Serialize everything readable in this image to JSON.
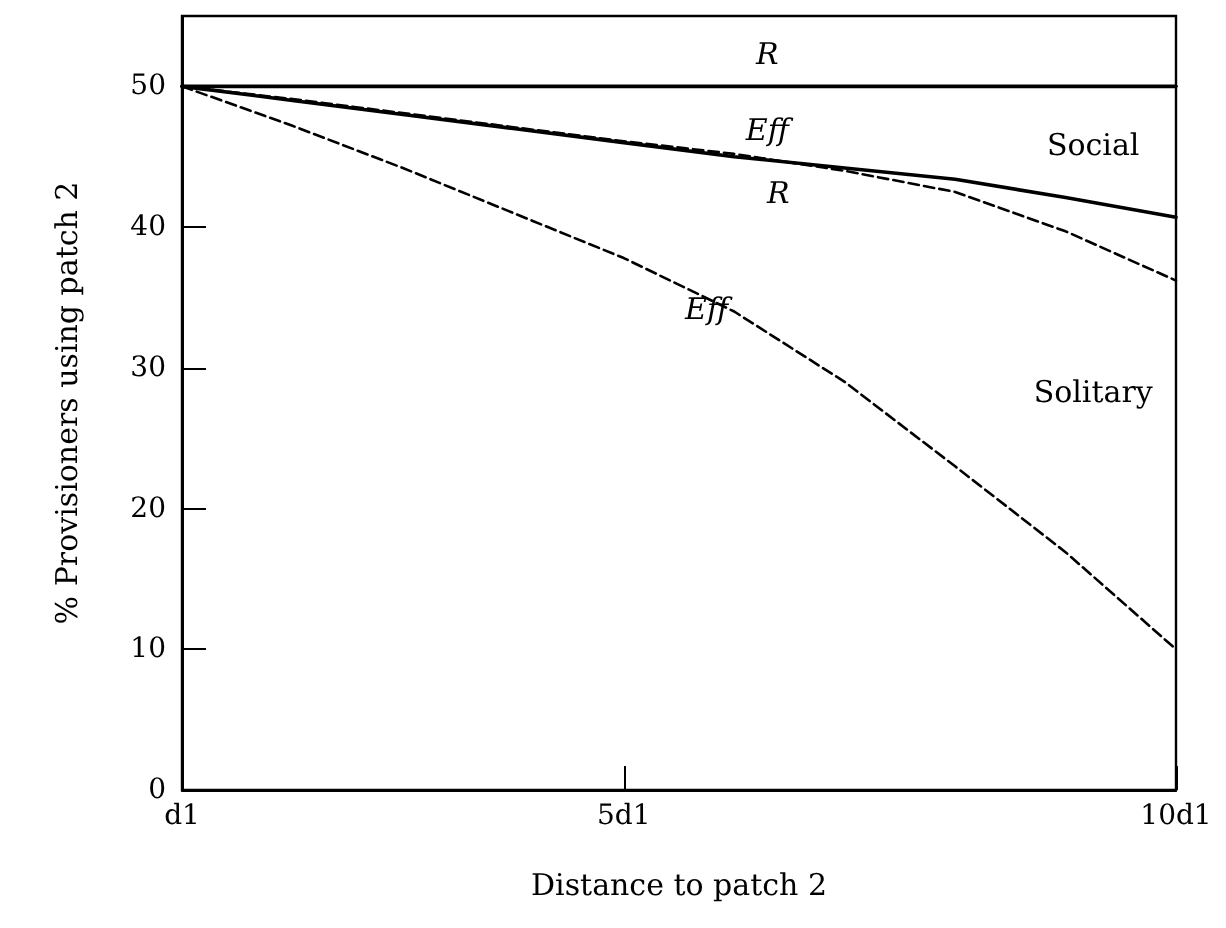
{
  "chart_data": {
    "type": "line",
    "xlabel": "Distance to patch 2",
    "ylabel": "% Provisioners using patch 2",
    "categories": [
      "d1",
      null,
      null,
      null,
      "5d1",
      null,
      null,
      null,
      null,
      "10d1"
    ],
    "series": [
      {
        "name": "R",
        "color": "#000000",
        "line_style": "solid",
        "values": [
          50,
          50,
          50,
          50,
          50,
          50,
          50,
          50,
          50,
          50
        ]
      },
      {
        "name": "Eff",
        "color": "#000000",
        "line_style": "solid",
        "values": [
          50,
          49,
          48,
          47,
          46,
          45,
          44.2,
          43.4,
          42.1,
          40.7
        ]
      },
      {
        "name": "R",
        "color": "#000000",
        "line_style": "dashed",
        "values": [
          50,
          49.1,
          48.1,
          47.1,
          46.1,
          45.2,
          44,
          42.5,
          39.7,
          36.2
        ]
      },
      {
        "name": "Eff",
        "color": "#000000",
        "line_style": "dashed",
        "values": [
          50,
          47.2,
          44.2,
          41,
          37.8,
          34,
          29,
          23,
          16.9,
          10
        ]
      }
    ],
    "annotations": [
      "Social",
      "Solitary"
    ],
    "ylim": [
      0,
      55
    ],
    "yticks": [
      0,
      10,
      20,
      30,
      40,
      50
    ],
    "marker": "none",
    "grid": false,
    "legend": false
  }
}
